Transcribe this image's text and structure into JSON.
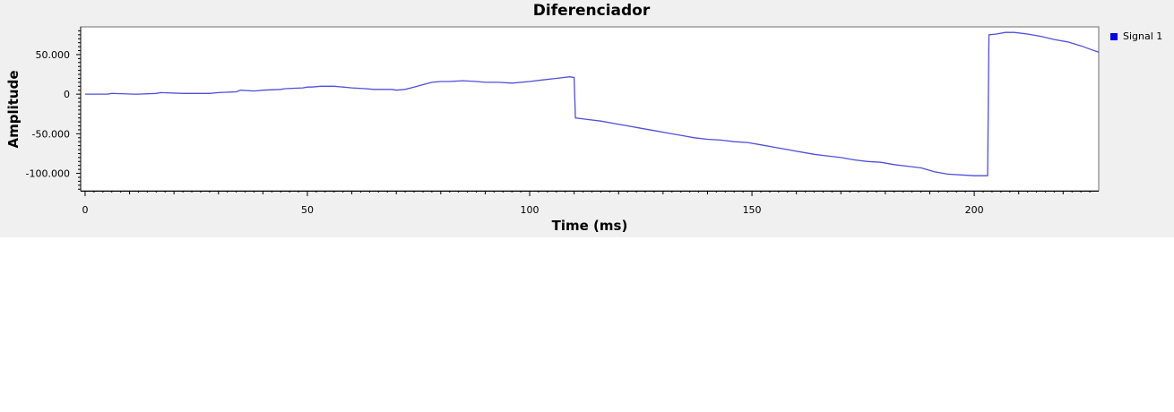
{
  "chart_data": {
    "type": "line",
    "title": "Diferenciador",
    "xlabel": "Time (ms)",
    "ylabel": "Amplitude",
    "xlim": [
      -1,
      228
    ],
    "ylim": [
      -122,
      85
    ],
    "x_ticks": [
      0,
      50,
      100,
      150,
      200
    ],
    "x_tick_labels": [
      "0",
      "50",
      "100",
      "150",
      "200"
    ],
    "y_ticks": [
      50,
      0,
      -50,
      -100
    ],
    "y_tick_labels": [
      "50.000",
      "0",
      "-50.000",
      "-100.000"
    ],
    "grid": false,
    "legend_position": "right",
    "series": [
      {
        "name": "Signal 1",
        "color": "#4f4fdc",
        "legend_color": "#0000ee",
        "x": [
          0,
          5,
          6,
          11,
          12,
          16,
          17,
          22,
          28,
          30,
          34,
          35,
          38,
          40,
          44,
          45,
          49,
          50,
          51,
          53,
          54,
          56,
          58,
          60,
          63,
          65,
          69,
          70,
          72,
          74,
          76,
          78,
          80,
          82,
          85,
          88,
          90,
          93,
          96,
          100,
          103,
          106,
          109,
          110,
          110.3,
          113,
          116,
          119,
          122,
          125,
          128,
          131,
          134,
          137,
          140,
          143,
          146,
          149,
          152,
          155,
          158,
          161,
          164,
          167,
          170,
          173,
          176,
          179,
          182,
          185,
          188,
          191,
          194,
          197,
          200,
          203,
          203.3,
          205,
          207,
          209,
          212,
          215,
          218,
          221,
          224,
          226,
          228
        ],
        "y": [
          0,
          0,
          1,
          0,
          0,
          1,
          2,
          1,
          1,
          2,
          3,
          5,
          4,
          5,
          6,
          7,
          8,
          9,
          9,
          10,
          10,
          10,
          9,
          8,
          7,
          6,
          6,
          5,
          6,
          9,
          12,
          15,
          16,
          16,
          17,
          16,
          15,
          15,
          14,
          16,
          18,
          20,
          22,
          21,
          -30,
          -32,
          -34,
          -37,
          -40,
          -43,
          -46,
          -49,
          -52,
          -55,
          -57,
          -58,
          -60,
          -61,
          -64,
          -67,
          -70,
          -73,
          -76,
          -78,
          -80,
          -83,
          -85,
          -86,
          -89,
          -91,
          -93,
          -98,
          -101,
          -102,
          -103,
          -103,
          75,
          76,
          78,
          78,
          76,
          73,
          69,
          66,
          61,
          57,
          53
        ]
      }
    ]
  }
}
